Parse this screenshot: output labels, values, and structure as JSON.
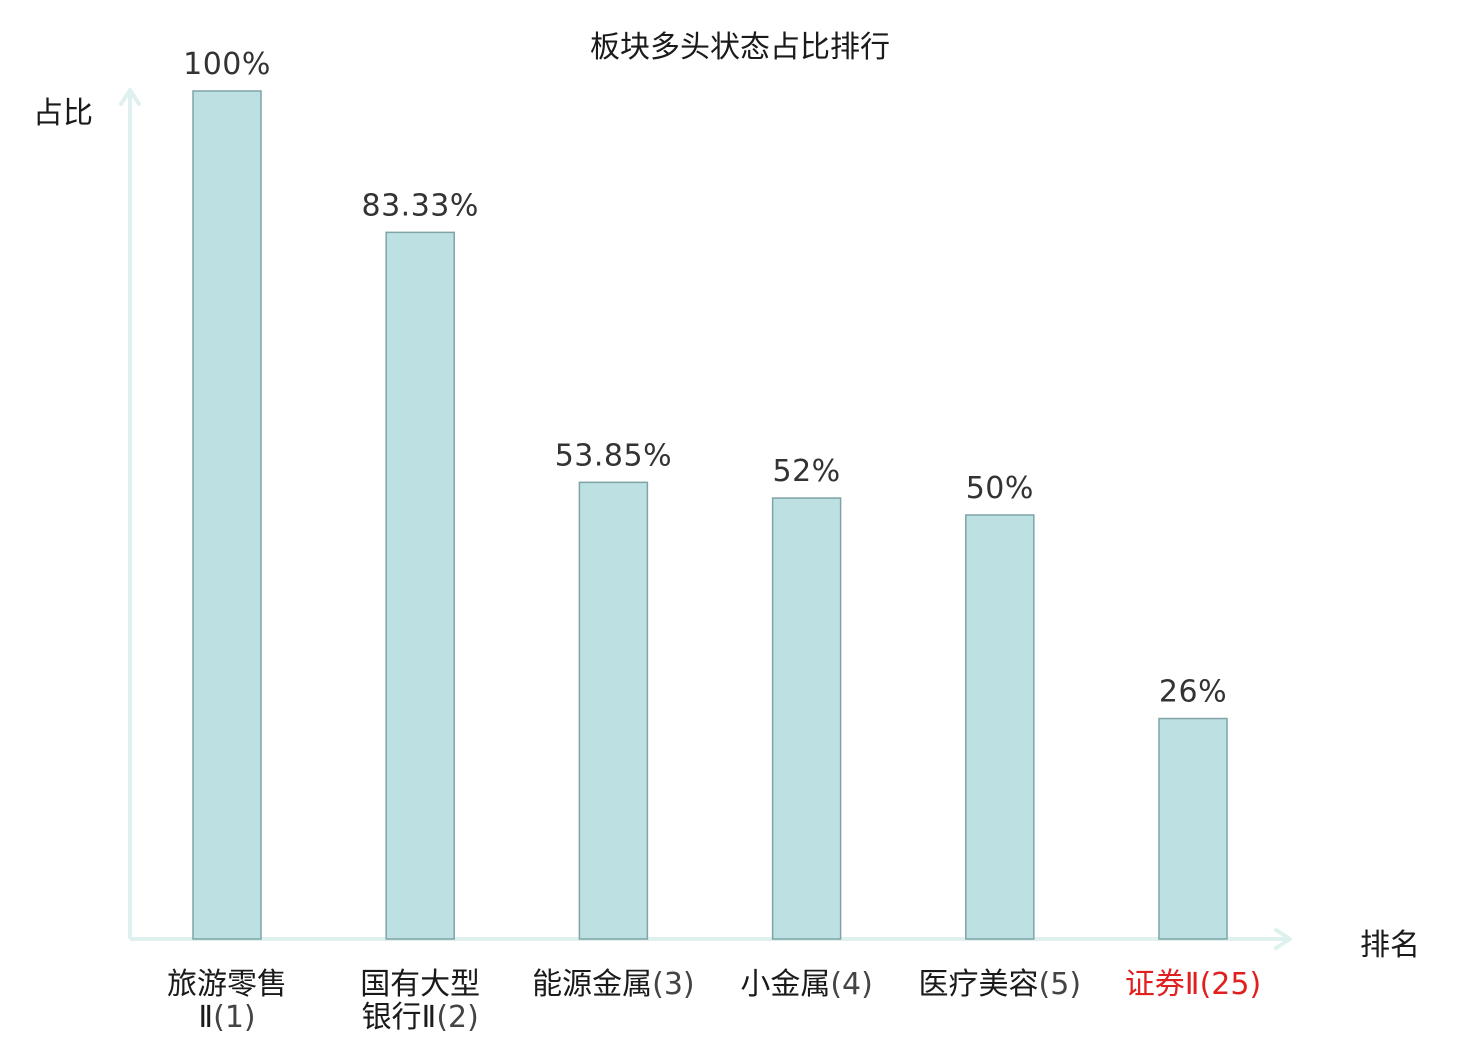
{
  "chart_data": {
    "type": "bar",
    "title": "板块多头状态占比排行",
    "ylabel": "占比",
    "xlabel": "排名",
    "ylim": [
      0,
      100
    ],
    "grid": false,
    "categories": [
      {
        "name": [
          "旅游零售",
          "Ⅱ"
        ],
        "rank": "(1)",
        "highlight": false
      },
      {
        "name": [
          "国有大型",
          "银行Ⅱ"
        ],
        "rank": "(2)",
        "highlight": false
      },
      {
        "name": [
          "能源金属"
        ],
        "rank": "(3)",
        "highlight": false
      },
      {
        "name": [
          "小金属"
        ],
        "rank": "(4)",
        "highlight": false
      },
      {
        "name": [
          "医疗美容"
        ],
        "rank": "(5)",
        "highlight": false
      },
      {
        "name": [
          "证券Ⅱ"
        ],
        "rank": "(25)",
        "highlight": true
      }
    ],
    "values": [
      100,
      83.33,
      53.85,
      52,
      50,
      26
    ],
    "value_labels": [
      "100%",
      "83.33%",
      "53.85%",
      "52%",
      "50%",
      "26%"
    ]
  },
  "colors": {
    "bar_fill": "#bde0e3",
    "bar_stroke": "#7fa3a6",
    "axis": "#dff1ee",
    "label_text": "#333333",
    "category_text": "#1a1a1a",
    "rank_text": "#444444",
    "highlight_text": "#e02020"
  }
}
